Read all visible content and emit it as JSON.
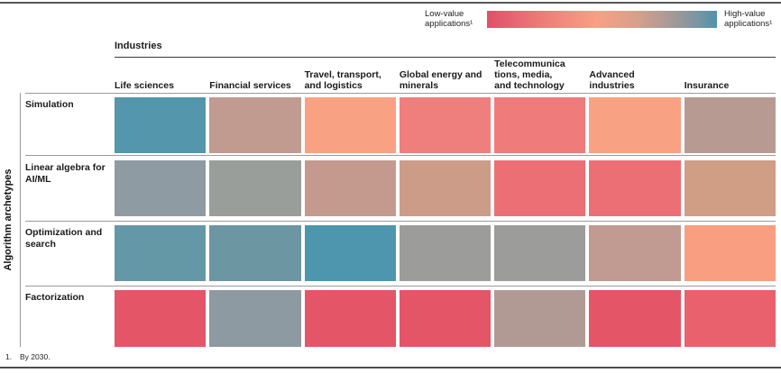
{
  "legend": {
    "low_label": "Low-value applications¹",
    "high_label": "High-value applications¹",
    "gradient_stops": [
      "#e0506a",
      "#ee7e79",
      "#f9a084",
      "#d7a08c",
      "#a69a96",
      "#7f96a1",
      "#4e94ac"
    ],
    "gradient_stop_positions_pct": [
      0,
      25,
      48,
      65,
      80,
      90,
      100
    ]
  },
  "header": {
    "industries_label": "Industries",
    "columns": [
      "Life sciences",
      "Financial services",
      "Travel, transport, and logistics",
      "Global energy and minerals",
      "Telecommunica\ntions, media,\nand technology",
      "Advanced industries",
      "Insurance"
    ]
  },
  "y_axis_label": "Algorithm archetypes",
  "footnote": {
    "marker": "1.",
    "text": "By 2030."
  },
  "chart_data": {
    "type": "heatmap",
    "x_categories": [
      "Life sciences",
      "Financial services",
      "Travel, transport, and logistics",
      "Global energy and minerals",
      "Telecommunications, media, and technology",
      "Advanced industries",
      "Insurance"
    ],
    "y_categories": [
      "Simulation",
      "Linear algebra for AI/ML",
      "Optimization and search",
      "Factorization"
    ],
    "value_scale": {
      "low": {
        "label": "Low-value applications (by 2030)",
        "color": "#e0506a"
      },
      "high": {
        "label": "High-value applications (by 2030)",
        "color": "#4e94ac"
      }
    },
    "cell_colors": [
      [
        "#5496ac",
        "#c19a90",
        "#f9a183",
        "#ef7f7d",
        "#ef7c7b",
        "#f9a183",
        "#b79b93"
      ],
      [
        "#8f9ba2",
        "#9a9e9b",
        "#c59a8e",
        "#cd9c88",
        "#ec6f75",
        "#ec6f75",
        "#d09d85"
      ],
      [
        "#6598a7",
        "#6b96a2",
        "#4d96ad",
        "#9c9c9a",
        "#9c9c9a",
        "#c19a91",
        "#f99e81"
      ],
      [
        "#e45568",
        "#8d9aa1",
        "#e45568",
        "#e45568",
        "#b29a94",
        "#e45568",
        "#e9616d"
      ]
    ],
    "approx_value_level_1to5": [
      [
        5.0,
        3.0,
        2.0,
        1.5,
        1.5,
        2.0,
        3.0
      ],
      [
        4.0,
        3.5,
        3.0,
        2.5,
        1.5,
        1.5,
        2.5
      ],
      [
        4.5,
        4.5,
        5.0,
        3.5,
        3.5,
        3.0,
        2.0
      ],
      [
        1.0,
        4.0,
        1.0,
        1.0,
        3.0,
        1.0,
        1.0
      ]
    ],
    "legend_position": "top-right",
    "grid": "off"
  }
}
